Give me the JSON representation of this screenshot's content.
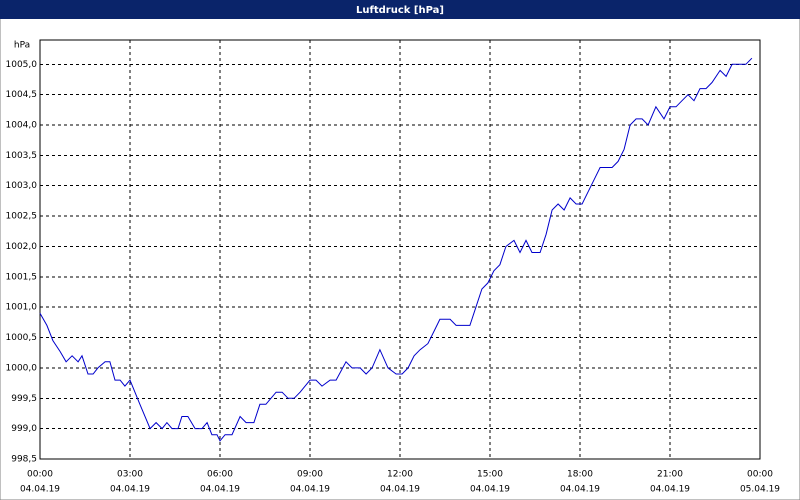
{
  "chart_data": {
    "type": "line",
    "title": "Luftdruck [hPa]",
    "y_unit": "hPa",
    "x": [
      0,
      0.23,
      0.43,
      0.67,
      0.87,
      1.07,
      1.27,
      1.4,
      1.6,
      1.77,
      1.93,
      2.17,
      2.33,
      2.5,
      2.67,
      2.83,
      3,
      3.33,
      3.67,
      3.87,
      4.07,
      4.23,
      4.4,
      4.6,
      4.73,
      4.93,
      5.17,
      5.4,
      5.57,
      5.73,
      5.9,
      6,
      6.17,
      6.4,
      6.67,
      6.87,
      7.13,
      7.33,
      7.53,
      7.87,
      8.07,
      8.27,
      8.47,
      8.67,
      9,
      9.2,
      9.4,
      9.67,
      9.87,
      10.2,
      10.4,
      10.67,
      10.87,
      11.07,
      11.33,
      11.6,
      11.87,
      12.07,
      12.27,
      12.47,
      12.67,
      12.93,
      13.13,
      13.33,
      13.67,
      13.87,
      14.13,
      14.33,
      14.53,
      14.73,
      14.93,
      15.13,
      15.33,
      15.53,
      15.8,
      16,
      16.2,
      16.4,
      16.67,
      16.87,
      17.07,
      17.27,
      17.47,
      17.67,
      17.87,
      18.07,
      18.27,
      18.47,
      18.67,
      18.87,
      19.07,
      19.27,
      19.47,
      19.67,
      19.87,
      20.07,
      20.27,
      20.53,
      20.8,
      21,
      21.2,
      21.4,
      21.6,
      21.8,
      22,
      22.2,
      22.4,
      22.67,
      22.87,
      23.07,
      23.33,
      23.53,
      23.73
    ],
    "series": [
      {
        "name": "Luftdruck",
        "color": "#0000cc",
        "values": [
          1000.9,
          1000.7,
          1000.45,
          1000.27,
          1000.1,
          1000.2,
          1000.1,
          1000.2,
          999.9,
          999.9,
          1000.0,
          1000.1,
          1000.1,
          999.8,
          999.8,
          999.7,
          999.8,
          999.4,
          999.0,
          999.1,
          999.0,
          999.1,
          999.0,
          999.0,
          999.2,
          999.2,
          999.0,
          999.0,
          999.1,
          998.9,
          998.9,
          998.8,
          998.9,
          998.9,
          999.2,
          999.1,
          999.1,
          999.4,
          999.4,
          999.6,
          999.6,
          999.5,
          999.5,
          999.6,
          999.8,
          999.8,
          999.7,
          999.8,
          999.8,
          1000.1,
          1000.0,
          1000.0,
          999.9,
          1000.0,
          1000.3,
          1000.0,
          999.9,
          999.9,
          1000.0,
          1000.2,
          1000.3,
          1000.4,
          1000.6,
          1000.8,
          1000.8,
          1000.7,
          1000.7,
          1000.7,
          1001.0,
          1001.3,
          1001.4,
          1001.6,
          1001.7,
          1002.0,
          1002.1,
          1001.9,
          1002.1,
          1001.9,
          1001.9,
          1002.2,
          1002.6,
          1002.7,
          1002.6,
          1002.8,
          1002.7,
          1002.7,
          1002.9,
          1003.1,
          1003.3,
          1003.3,
          1003.3,
          1003.4,
          1003.6,
          1004.0,
          1004.1,
          1004.1,
          1004.0,
          1004.3,
          1004.1,
          1004.3,
          1004.3,
          1004.4,
          1004.5,
          1004.4,
          1004.6,
          1004.6,
          1004.7,
          1004.9,
          1004.8,
          1005.0,
          1005.0,
          1005.0,
          1005.1
        ]
      }
    ],
    "xlim": [
      0,
      24
    ],
    "xticks": [
      {
        "value": 0,
        "label": "00:00"
      },
      {
        "value": 3,
        "label": "03:00"
      },
      {
        "value": 6,
        "label": "06:00"
      },
      {
        "value": 9,
        "label": "09:00"
      },
      {
        "value": 12,
        "label": "12:00"
      },
      {
        "value": 15,
        "label": "15:00"
      },
      {
        "value": 18,
        "label": "18:00"
      },
      {
        "value": 21,
        "label": "21:00"
      },
      {
        "value": 24,
        "label": "00:00"
      }
    ],
    "xtick_dates": [
      "04.04.19",
      "04.04.19",
      "04.04.19",
      "04.04.19",
      "04.04.19",
      "04.04.19",
      "04.04.19",
      "04.04.19",
      "05.04.19"
    ],
    "ylim": [
      998.5,
      1005.4
    ],
    "yticks": [
      {
        "value": 998.5,
        "label": "998,5"
      },
      {
        "value": 999,
        "label": "999,0"
      },
      {
        "value": 999.5,
        "label": "999,5"
      },
      {
        "value": 1000,
        "label": "1000,0"
      },
      {
        "value": 1000.5,
        "label": "1000,5"
      },
      {
        "value": 1001,
        "label": "1001,0"
      },
      {
        "value": 1001.5,
        "label": "1001,5"
      },
      {
        "value": 1002,
        "label": "1002,0"
      },
      {
        "value": 1002.5,
        "label": "1002,5"
      },
      {
        "value": 1003,
        "label": "1003,0"
      },
      {
        "value": 1003.5,
        "label": "1003,5"
      },
      {
        "value": 1004,
        "label": "1004,0"
      },
      {
        "value": 1004.5,
        "label": "1004,5"
      },
      {
        "value": 1005,
        "label": "1005,0"
      }
    ],
    "grid": true
  }
}
